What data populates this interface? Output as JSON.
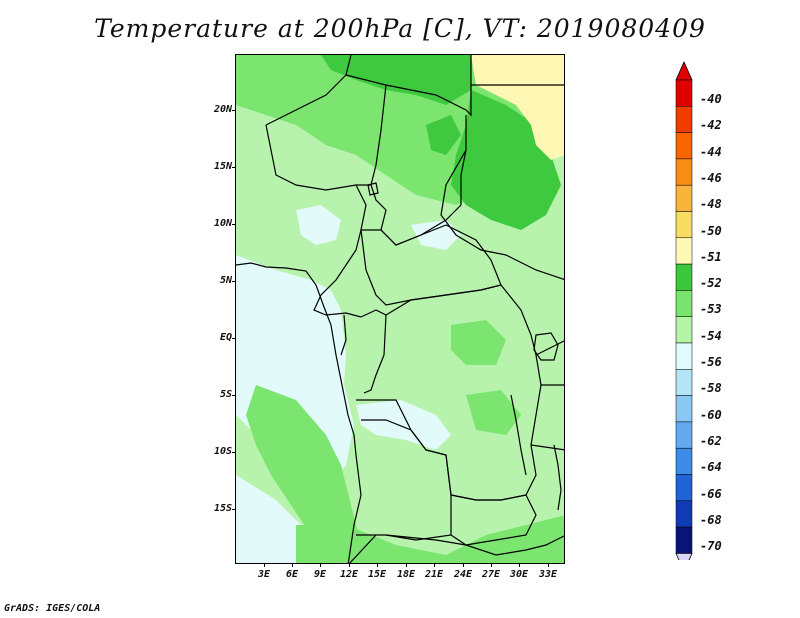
{
  "title": "Temperature at 200hPa [C], VT: 2019080409",
  "footer": "GrADS: IGES/COLA",
  "map": {
    "lat_ticks": [
      "20N",
      "15N",
      "10N",
      "5N",
      "EQ",
      "5S",
      "10S",
      "15S"
    ],
    "lon_ticks": [
      "3E",
      "6E",
      "9E",
      "12E",
      "15E",
      "18E",
      "21E",
      "24E",
      "27E",
      "30E",
      "33E"
    ]
  },
  "colorbar": {
    "labels": [
      "-40",
      "-42",
      "-44",
      "-46",
      "-48",
      "-50",
      "-51",
      "-52",
      "-53",
      "-54",
      "-56",
      "-58",
      "-60",
      "-62",
      "-64",
      "-66",
      "-68",
      "-70"
    ],
    "colors": [
      "#e00000",
      "#f03c00",
      "#f86400",
      "#f88c14",
      "#f8b43c",
      "#f8dc64",
      "#fff8b4",
      "#3cc83c",
      "#78e46e",
      "#b4f4a6",
      "#e0fcfc",
      "#b4e4f8",
      "#8cc8f4",
      "#64aaf0",
      "#3c8ce8",
      "#2064d8",
      "#0f3cb4",
      "#081478"
    ],
    "end_colors": {
      "top": "#e00000",
      "bottom": "#dcd6f8"
    }
  }
}
